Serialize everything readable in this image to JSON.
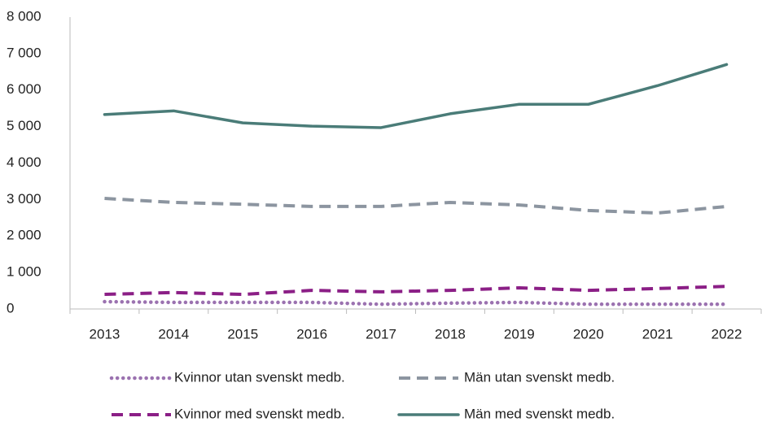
{
  "chart_data": {
    "type": "line",
    "categories": [
      "2013",
      "2014",
      "2015",
      "2016",
      "2017",
      "2018",
      "2019",
      "2020",
      "2021",
      "2022"
    ],
    "series": [
      {
        "name": "Kvinnor utan svenskt medb.",
        "color": "#9b72b0",
        "dash": "dotted",
        "values": [
          200,
          180,
          180,
          180,
          130,
          160,
          180,
          130,
          130,
          130
        ]
      },
      {
        "name": "Män utan svenskt medb.",
        "color": "#8c95a0",
        "dash": "dashed",
        "values": [
          3030,
          2920,
          2870,
          2810,
          2810,
          2920,
          2850,
          2700,
          2630,
          2810
        ]
      },
      {
        "name": "Kvinnor med svenskt medb.",
        "color": "#8b1f86",
        "dash": "dashed",
        "values": [
          400,
          450,
          400,
          510,
          470,
          510,
          580,
          510,
          560,
          620
        ]
      },
      {
        "name": "Män med svenskt medb.",
        "color": "#4a7c78",
        "dash": "solid",
        "values": [
          5330,
          5430,
          5100,
          5010,
          4970,
          5350,
          5610,
          5610,
          6120,
          6700
        ]
      }
    ],
    "ylim": [
      0,
      8000
    ],
    "yticks": [
      0,
      {
        "value": 1000,
        "label": "1 000"
      },
      {
        "value": 2000,
        "label": "2 000"
      },
      {
        "value": 3000,
        "label": "3 000"
      },
      {
        "value": 4000,
        "label": "4 000"
      },
      {
        "value": 5000,
        "label": "5 000"
      },
      {
        "value": 6000,
        "label": "6 000"
      },
      {
        "value": 7000,
        "label": "7 000"
      },
      {
        "value": 8000,
        "label": "8 000"
      }
    ],
    "grid": false
  }
}
